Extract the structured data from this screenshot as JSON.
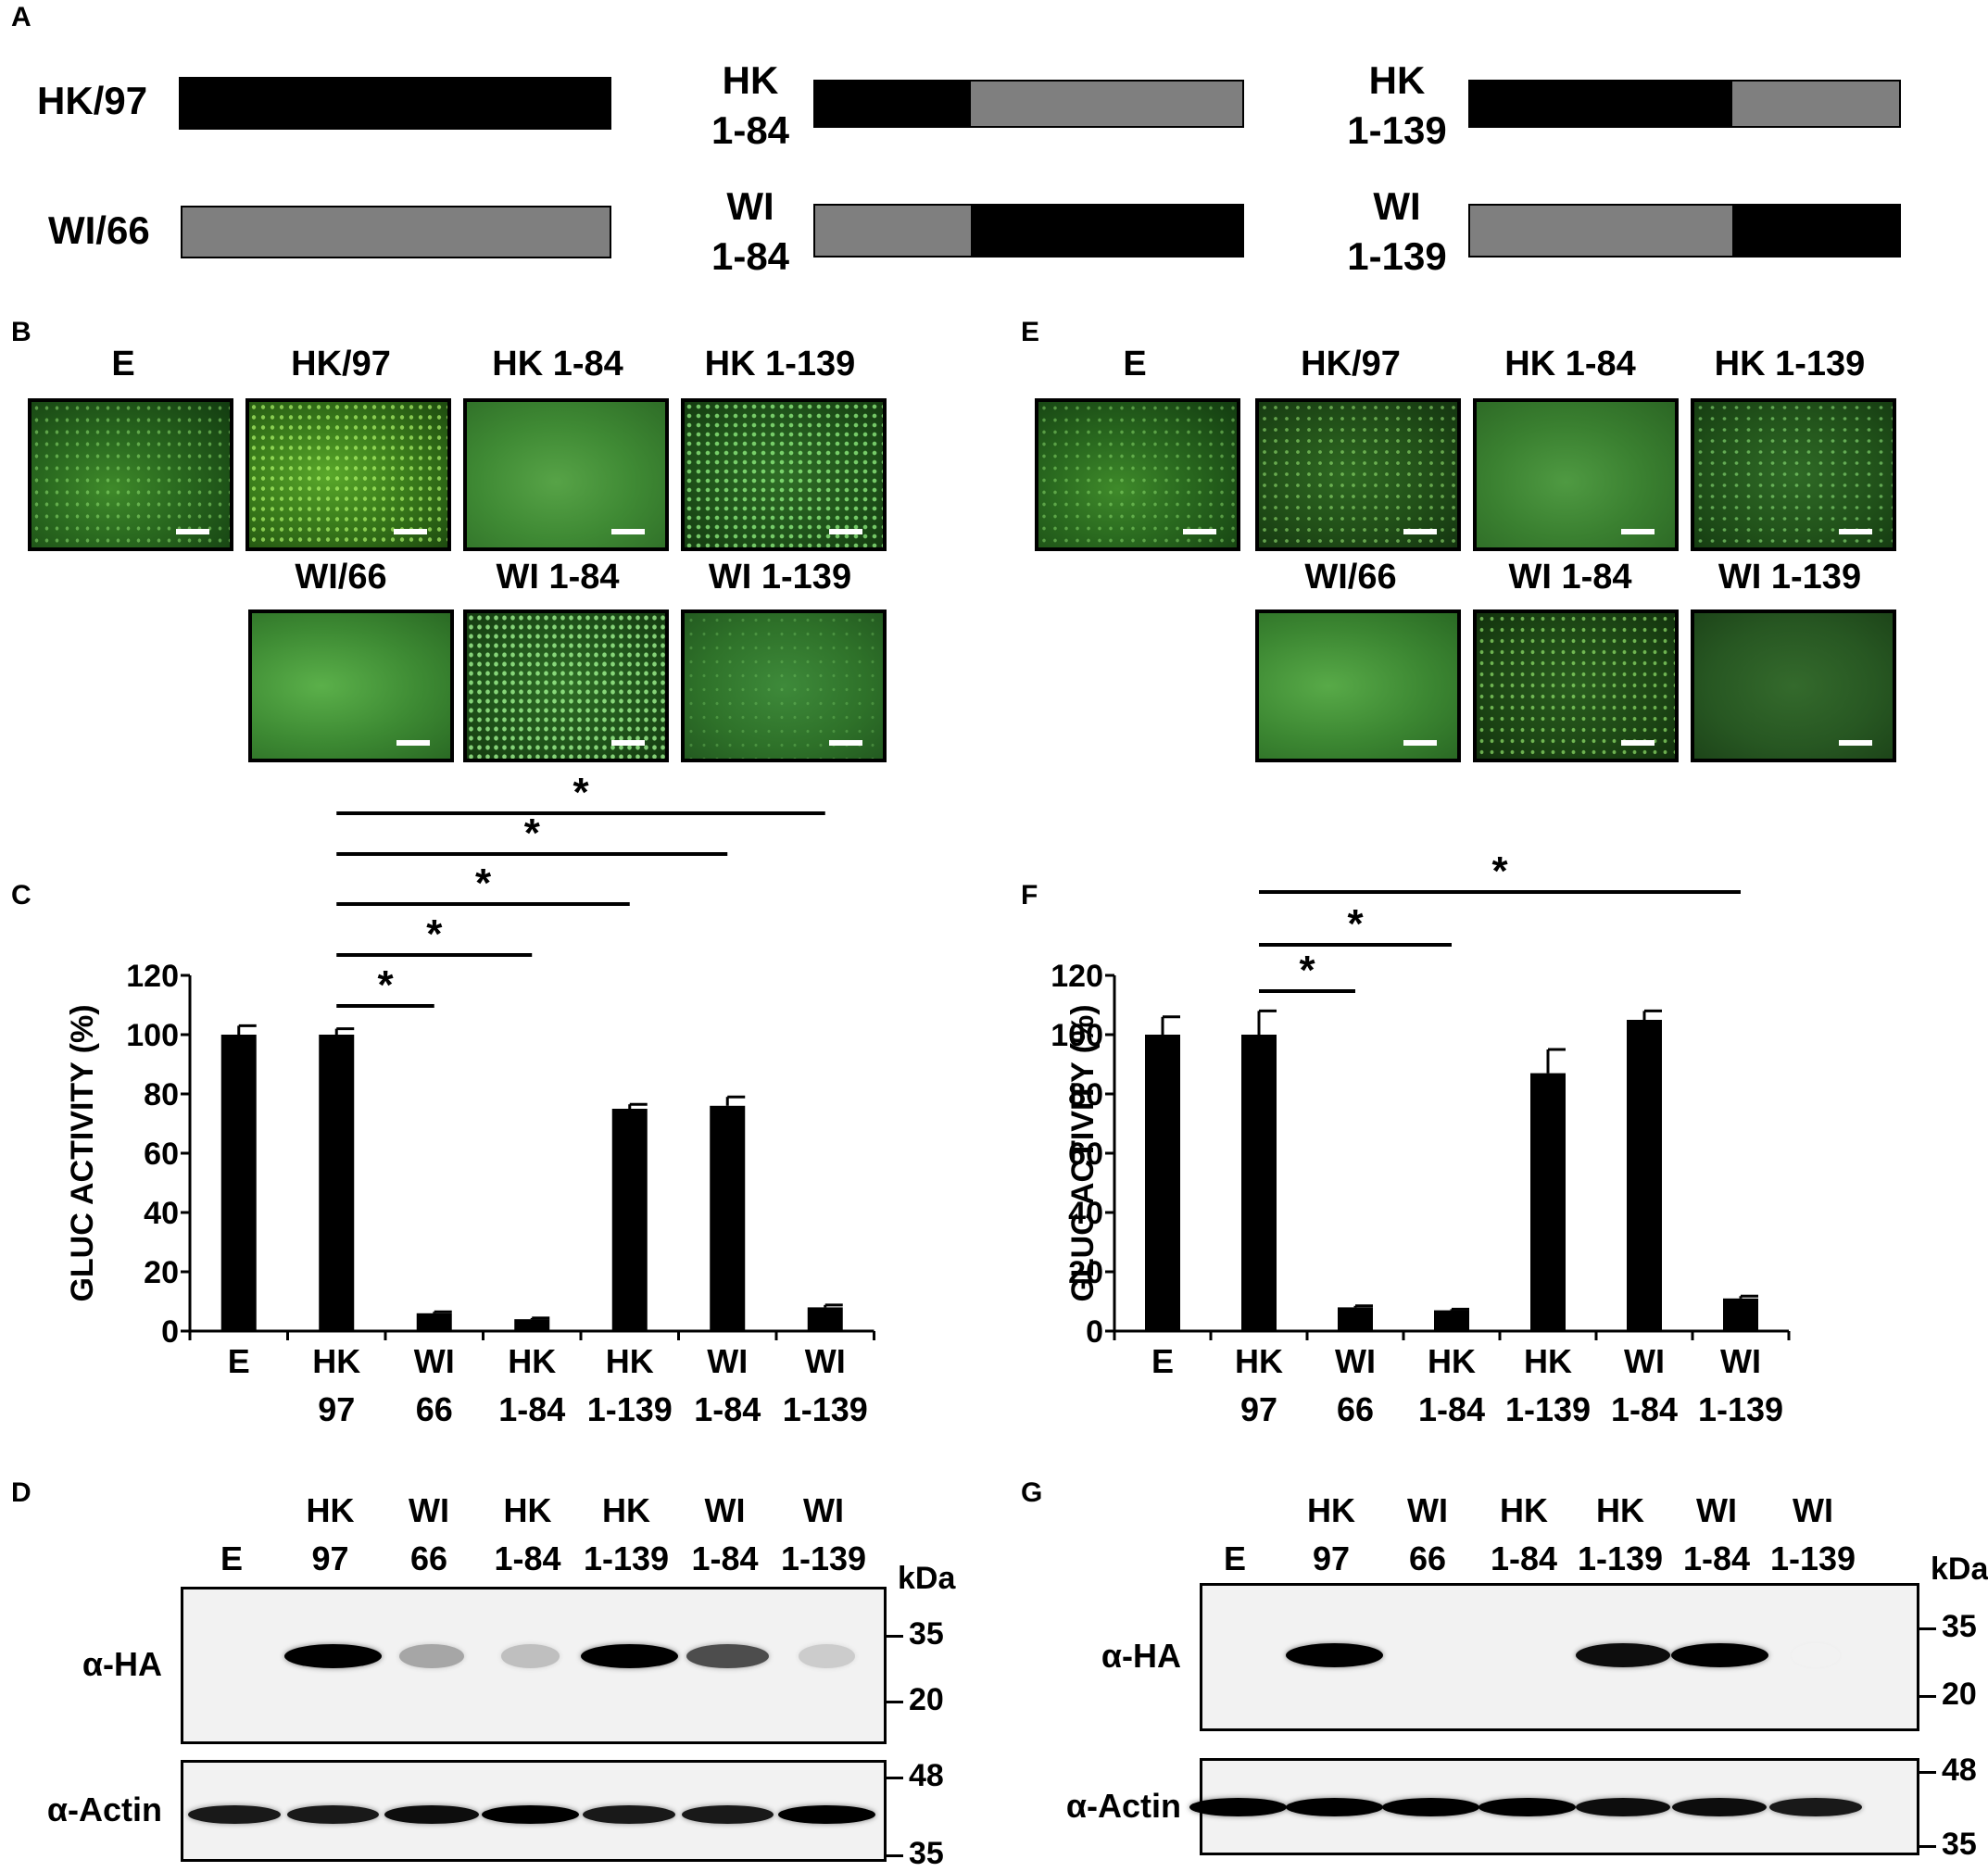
{
  "panel_labels": {
    "A": "A",
    "B": "B",
    "C": "C",
    "D": "D",
    "E": "E",
    "F": "F",
    "G": "G"
  },
  "constructs": {
    "HK97": "HK/97",
    "WI66": "WI/66",
    "HK184": [
      "HK",
      "1-84"
    ],
    "WI184": [
      "WI",
      "1-84"
    ],
    "HK1139": [
      "HK",
      "1-139"
    ],
    "WI1139": [
      "WI",
      "1-139"
    ]
  },
  "colors": {
    "black_segment": "#000000",
    "gray_segment": "#7f7f7f"
  },
  "micro_titles": {
    "E": "E",
    "HK97": "HK/97",
    "HK184": "HK 1-84",
    "HK1139": "HK 1-139",
    "WI66": "WI/66",
    "WI184": "WI 1-84",
    "WI1139": "WI 1-139"
  },
  "sig_marker": "*",
  "chart_data": [
    {
      "type": "bar",
      "panel": "C",
      "ylabel": "GLUC ACTIVITY (%)",
      "ylim": [
        0,
        120
      ],
      "yticks": [
        0,
        20,
        40,
        60,
        80,
        100,
        120
      ],
      "categories": [
        [
          "E"
        ],
        [
          "HK",
          "97"
        ],
        [
          "WI",
          "66"
        ],
        [
          "HK",
          "1-84"
        ],
        [
          "HK",
          "1-139"
        ],
        [
          "WI",
          "1-84"
        ],
        [
          "WI",
          "1-139"
        ]
      ],
      "values": [
        100,
        100,
        6,
        4,
        75,
        76,
        8
      ],
      "errors": [
        3,
        2,
        0.5,
        0.4,
        1.5,
        3,
        0.8
      ],
      "significance": [
        [
          1,
          2
        ],
        [
          1,
          3
        ],
        [
          1,
          4
        ],
        [
          1,
          5
        ],
        [
          1,
          6
        ]
      ]
    },
    {
      "type": "bar",
      "panel": "F",
      "ylabel": "GLUC ACTIVITY (%)",
      "ylim": [
        0,
        120
      ],
      "yticks": [
        0,
        20,
        40,
        60,
        80,
        100,
        120
      ],
      "categories": [
        [
          "E"
        ],
        [
          "HK",
          "97"
        ],
        [
          "WI",
          "66"
        ],
        [
          "HK",
          "1-84"
        ],
        [
          "HK",
          "1-139"
        ],
        [
          "WI",
          "1-84"
        ],
        [
          "WI",
          "1-139"
        ]
      ],
      "values": [
        100,
        100,
        8,
        7,
        87,
        105,
        11
      ],
      "errors": [
        6,
        8,
        0.5,
        0.4,
        8,
        3,
        0.8
      ],
      "significance": [
        [
          1,
          2
        ],
        [
          1,
          3
        ],
        [
          1,
          6
        ]
      ]
    }
  ],
  "blot_D": {
    "lanes": [
      [
        "",
        "E"
      ],
      [
        "HK",
        "97"
      ],
      [
        "WI",
        "66"
      ],
      [
        "HK",
        "1-84"
      ],
      [
        "HK",
        "1-139"
      ],
      [
        "WI",
        "1-84"
      ],
      [
        "WI",
        "1-139"
      ]
    ],
    "unit": "kDa",
    "ha_label": "α-HA",
    "actin_label": "α-Actin",
    "ha_markers": [
      "35",
      "20"
    ],
    "actin_markers": [
      "48",
      "35"
    ],
    "ha_intensity": [
      0,
      1.0,
      0.35,
      0.25,
      1.0,
      0.7,
      0.2
    ],
    "actin_intensity": [
      0.9,
      0.9,
      0.95,
      1.0,
      0.9,
      0.9,
      1.0
    ]
  },
  "blot_G": {
    "lanes": [
      [
        "",
        "E"
      ],
      [
        "HK",
        "97"
      ],
      [
        "WI",
        "66"
      ],
      [
        "HK",
        "1-84"
      ],
      [
        "HK",
        "1-139"
      ],
      [
        "WI",
        "1-84"
      ],
      [
        "WI",
        "1-139"
      ]
    ],
    "unit": "kDa",
    "ha_label": "α-HA",
    "actin_label": "α-Actin",
    "ha_markers": [
      "35",
      "20"
    ],
    "actin_markers": [
      "48",
      "35"
    ],
    "ha_intensity": [
      0,
      1.0,
      0,
      0,
      0.95,
      1.0,
      0.05
    ],
    "actin_intensity": [
      1.0,
      1.0,
      1.0,
      1.0,
      0.95,
      0.95,
      0.9
    ]
  }
}
